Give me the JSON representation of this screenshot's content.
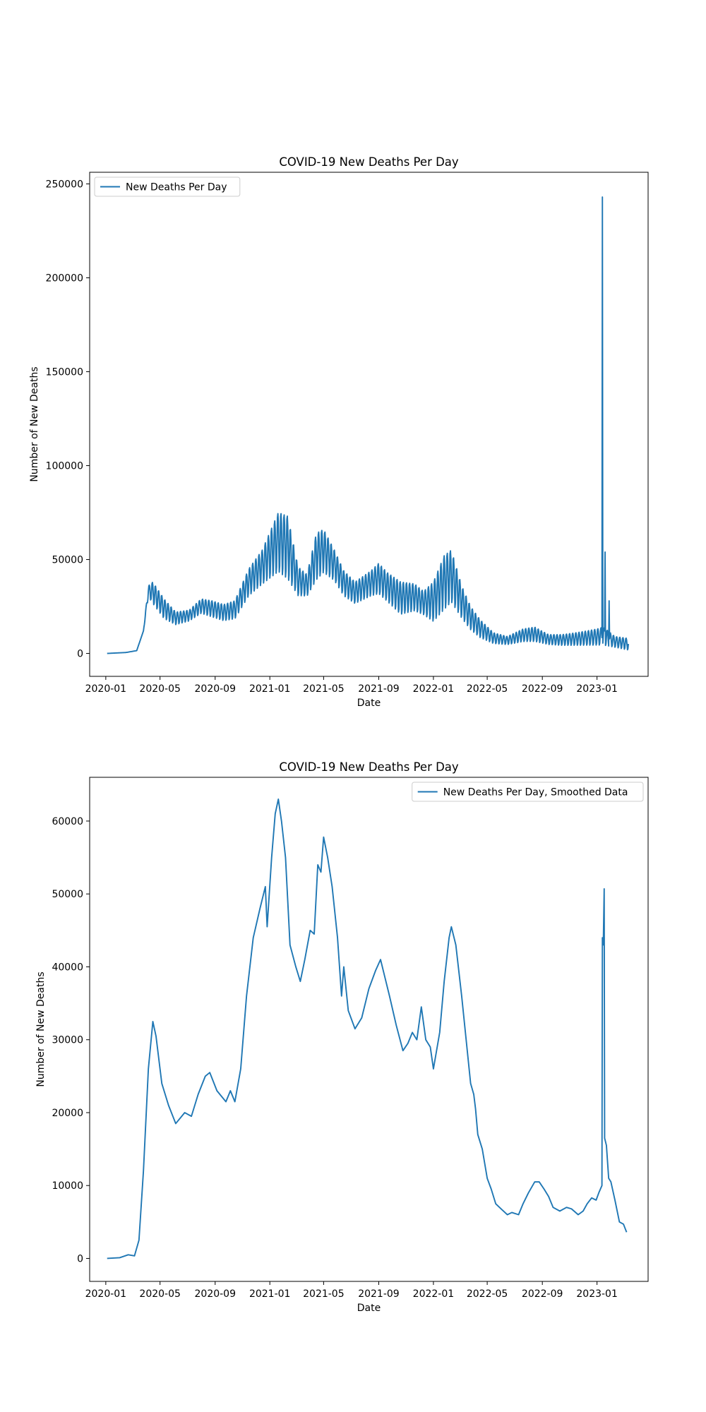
{
  "chart_data": [
    {
      "type": "line",
      "title": "COVID-19 New Deaths Per Day",
      "xlabel": "Date",
      "ylabel": "Number of New Deaths",
      "x_range": [
        "2019-11-26",
        "2023-04-25"
      ],
      "ylim": [
        -12200,
        256200
      ],
      "x_ticks": [
        "2020-01",
        "2020-05",
        "2020-09",
        "2021-01",
        "2021-05",
        "2021-09",
        "2022-01",
        "2022-05",
        "2022-09",
        "2023-01"
      ],
      "y_ticks": [
        0,
        50000,
        100000,
        150000,
        200000,
        250000
      ],
      "legend_position": "upper left",
      "grid": false,
      "series": [
        {
          "name": "New Deaths Per Day",
          "color": "#1f77b4",
          "smoothed": false,
          "start_date": "2020-01-04",
          "end_date": "2023-03-12",
          "oscillation": "weekly",
          "trend": [
            [
              "2020-01-04",
              0,
              0
            ],
            [
              "2020-02-15",
              500,
              500
            ],
            [
              "2020-03-10",
              1500,
              1500
            ],
            [
              "2020-03-25",
              12000,
              12000
            ],
            [
              "2020-04-05",
              30000,
              36000
            ],
            [
              "2020-04-15",
              26000,
              38000
            ],
            [
              "2020-05-10",
              18000,
              29000
            ],
            [
              "2020-06-05",
              15000,
              22000
            ],
            [
              "2020-07-05",
              17000,
              23000
            ],
            [
              "2020-08-01",
              21000,
              29000
            ],
            [
              "2020-08-25",
              19000,
              28000
            ],
            [
              "2020-09-20",
              17000,
              26000
            ],
            [
              "2020-10-15",
              18000,
              28000
            ],
            [
              "2020-11-15",
              30000,
              45000
            ],
            [
              "2020-12-15",
              36000,
              55000
            ],
            [
              "2021-01-20",
              42000,
              75000
            ],
            [
              "2021-02-10",
              38000,
              73000
            ],
            [
              "2021-03-05",
              30000,
              46000
            ],
            [
              "2021-03-25",
              30000,
              42000
            ],
            [
              "2021-04-15",
              38000,
              64000
            ],
            [
              "2021-05-01",
              42000,
              66000
            ],
            [
              "2021-05-25",
              38000,
              55000
            ],
            [
              "2021-06-15",
              30000,
              44000
            ],
            [
              "2021-07-10",
              26000,
              38000
            ],
            [
              "2021-08-15",
              30000,
              44000
            ],
            [
              "2021-09-01",
              31000,
              48000
            ],
            [
              "2021-09-20",
              27000,
              43000
            ],
            [
              "2021-10-20",
              20000,
              38000
            ],
            [
              "2021-11-20",
              22000,
              37000
            ],
            [
              "2021-12-10",
              20000,
              33000
            ],
            [
              "2022-01-01",
              16000,
              38000
            ],
            [
              "2022-01-25",
              22000,
              52000
            ],
            [
              "2022-02-10",
              26000,
              55000
            ],
            [
              "2022-03-05",
              18000,
              36000
            ],
            [
              "2022-03-25",
              12000,
              25000
            ],
            [
              "2022-04-15",
              8000,
              18000
            ],
            [
              "2022-05-15",
              5000,
              11000
            ],
            [
              "2022-06-15",
              4500,
              9000
            ],
            [
              "2022-07-20",
              6000,
              13000
            ],
            [
              "2022-08-15",
              6000,
              14000
            ],
            [
              "2022-09-15",
              4500,
              10000
            ],
            [
              "2022-10-15",
              4000,
              10000
            ],
            [
              "2022-11-15",
              4000,
              11000
            ],
            [
              "2022-12-10",
              4000,
              12000
            ],
            [
              "2023-01-01",
              4000,
              13000
            ],
            [
              "2023-01-15",
              4000,
              14000
            ],
            [
              "2023-02-10",
              3000,
              9000
            ],
            [
              "2023-03-12",
              1500,
              8000
            ]
          ],
          "spikes": [
            [
              "2023-01-13",
              243000
            ],
            [
              "2023-01-19",
              54000
            ],
            [
              "2023-01-28",
              28000
            ]
          ]
        }
      ]
    },
    {
      "type": "line",
      "title": "COVID-19 New Deaths Per Day",
      "xlabel": "Date",
      "ylabel": "Number of New Deaths",
      "x_range": [
        "2019-11-26",
        "2023-04-25"
      ],
      "ylim": [
        -3150,
        66000
      ],
      "x_ticks": [
        "2020-01",
        "2020-05",
        "2020-09",
        "2021-01",
        "2021-05",
        "2021-09",
        "2022-01",
        "2022-05",
        "2022-09",
        "2023-01"
      ],
      "y_ticks": [
        0,
        10000,
        20000,
        30000,
        40000,
        50000,
        60000
      ],
      "legend_position": "upper right",
      "grid": false,
      "series": [
        {
          "name": "New Deaths Per Day, Smoothed Data",
          "color": "#1f77b4",
          "smoothed": true,
          "points": [
            [
              "2020-01-04",
              0
            ],
            [
              "2020-02-01",
              100
            ],
            [
              "2020-02-20",
              500
            ],
            [
              "2020-03-05",
              350
            ],
            [
              "2020-03-15",
              2500
            ],
            [
              "2020-03-25",
              12000
            ],
            [
              "2020-04-05",
              26000
            ],
            [
              "2020-04-15",
              32500
            ],
            [
              "2020-04-22",
              30500
            ],
            [
              "2020-05-05",
              24000
            ],
            [
              "2020-05-20",
              21000
            ],
            [
              "2020-06-05",
              18500
            ],
            [
              "2020-06-25",
              20000
            ],
            [
              "2020-07-10",
              19500
            ],
            [
              "2020-07-25",
              22500
            ],
            [
              "2020-08-10",
              25000
            ],
            [
              "2020-08-20",
              25500
            ],
            [
              "2020-09-05",
              23000
            ],
            [
              "2020-09-25",
              21500
            ],
            [
              "2020-10-05",
              23000
            ],
            [
              "2020-10-15",
              21500
            ],
            [
              "2020-10-28",
              26000
            ],
            [
              "2020-11-10",
              36000
            ],
            [
              "2020-11-25",
              44000
            ],
            [
              "2020-12-10",
              48000
            ],
            [
              "2020-12-22",
              51000
            ],
            [
              "2020-12-26",
              45500
            ],
            [
              "2021-01-05",
              55000
            ],
            [
              "2021-01-13",
              61000
            ],
            [
              "2021-01-20",
              63000
            ],
            [
              "2021-01-27",
              60000
            ],
            [
              "2021-02-05",
              55000
            ],
            [
              "2021-02-15",
              43000
            ],
            [
              "2021-02-28",
              40000
            ],
            [
              "2021-03-10",
              38000
            ],
            [
              "2021-03-20",
              41000
            ],
            [
              "2021-04-01",
              45000
            ],
            [
              "2021-04-10",
              44500
            ],
            [
              "2021-04-18",
              54000
            ],
            [
              "2021-04-25",
              53000
            ],
            [
              "2021-05-01",
              57800
            ],
            [
              "2021-05-10",
              55000
            ],
            [
              "2021-05-20",
              51000
            ],
            [
              "2021-06-01",
              44000
            ],
            [
              "2021-06-10",
              36000
            ],
            [
              "2021-06-15",
              40000
            ],
            [
              "2021-06-25",
              34000
            ],
            [
              "2021-07-10",
              31500
            ],
            [
              "2021-07-25",
              33000
            ],
            [
              "2021-08-10",
              37000
            ],
            [
              "2021-08-25",
              39500
            ],
            [
              "2021-09-05",
              41000
            ],
            [
              "2021-09-15",
              38500
            ],
            [
              "2021-09-25",
              36000
            ],
            [
              "2021-10-10",
              32000
            ],
            [
              "2021-10-25",
              28500
            ],
            [
              "2021-11-05",
              29500
            ],
            [
              "2021-11-15",
              31000
            ],
            [
              "2021-11-25",
              30000
            ],
            [
              "2021-12-05",
              34500
            ],
            [
              "2021-12-15",
              30000
            ],
            [
              "2021-12-25",
              29000
            ],
            [
              "2022-01-01",
              26000
            ],
            [
              "2022-01-15",
              31000
            ],
            [
              "2022-01-25",
              38000
            ],
            [
              "2022-02-05",
              44000
            ],
            [
              "2022-02-10",
              45500
            ],
            [
              "2022-02-20",
              43000
            ],
            [
              "2022-03-05",
              36000
            ],
            [
              "2022-03-15",
              30000
            ],
            [
              "2022-03-25",
              24000
            ],
            [
              "2022-04-01",
              22500
            ],
            [
              "2022-04-05",
              20500
            ],
            [
              "2022-04-10",
              17000
            ],
            [
              "2022-04-20",
              15000
            ],
            [
              "2022-05-01",
              11000
            ],
            [
              "2022-05-10",
              9500
            ],
            [
              "2022-05-20",
              7500
            ],
            [
              "2022-06-01",
              6800
            ],
            [
              "2022-06-15",
              6000
            ],
            [
              "2022-06-25",
              6300
            ],
            [
              "2022-07-10",
              6000
            ],
            [
              "2022-07-20",
              7500
            ],
            [
              "2022-08-01",
              9000
            ],
            [
              "2022-08-15",
              10500
            ],
            [
              "2022-08-25",
              10500
            ],
            [
              "2022-09-05",
              9500
            ],
            [
              "2022-09-15",
              8500
            ],
            [
              "2022-09-25",
              7000
            ],
            [
              "2022-10-10",
              6500
            ],
            [
              "2022-10-25",
              7000
            ],
            [
              "2022-11-05",
              6800
            ],
            [
              "2022-11-20",
              6000
            ],
            [
              "2022-12-01",
              6500
            ],
            [
              "2022-12-10",
              7500
            ],
            [
              "2022-12-20",
              8300
            ],
            [
              "2022-12-30",
              8000
            ],
            [
              "2023-01-05",
              9000
            ],
            [
              "2023-01-12",
              10000
            ],
            [
              "2023-01-13",
              44000
            ],
            [
              "2023-01-15",
              43000
            ],
            [
              "2023-01-17",
              50700
            ],
            [
              "2023-01-18",
              16500
            ],
            [
              "2023-01-22",
              15500
            ],
            [
              "2023-01-27",
              11000
            ],
            [
              "2023-02-01",
              10500
            ],
            [
              "2023-02-10",
              8000
            ],
            [
              "2023-02-20",
              5000
            ],
            [
              "2023-03-01",
              4700
            ],
            [
              "2023-03-08",
              3600
            ]
          ]
        }
      ]
    }
  ]
}
